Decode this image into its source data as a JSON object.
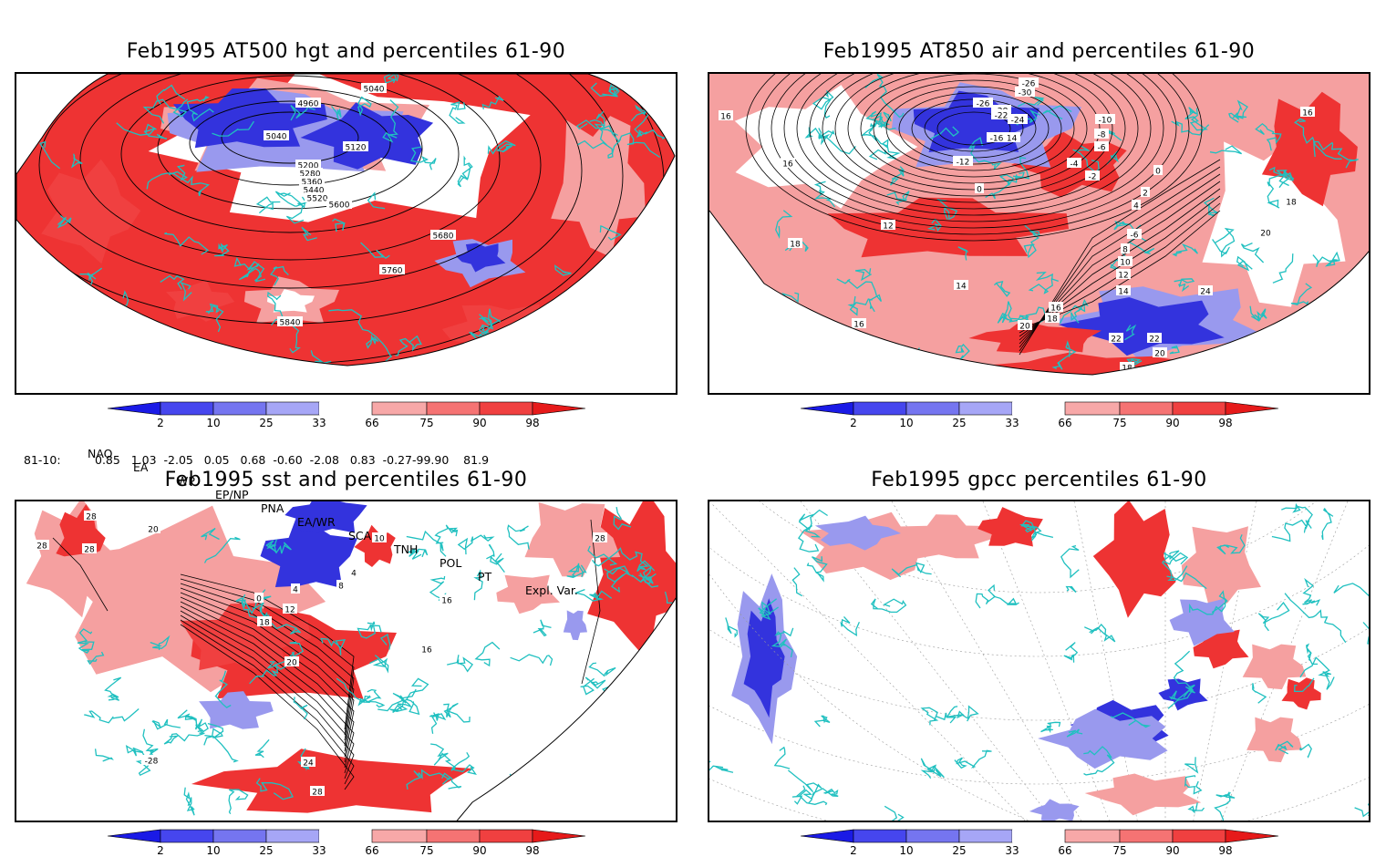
{
  "panels": [
    {
      "title": "Feb1995 AT500 hgt and percentiles 61-90",
      "contour_labels": [
        "4960",
        "5040",
        "5040",
        "5120",
        "5200",
        "5280",
        "5360",
        "5440",
        "5520",
        "5600",
        "5680",
        "5760",
        "5840"
      ]
    },
    {
      "title": "Feb1995 AT850 air and percentiles 61-90",
      "contour_labels": [
        "-26",
        "-30",
        "-26",
        "-28",
        "-22",
        "-24",
        "-10",
        "-14",
        "-16",
        "-8",
        "-6",
        "-12",
        "-4",
        "-2",
        "0",
        "0",
        "16",
        "16",
        "16",
        "12",
        "2",
        "4",
        "18",
        "-6",
        "8",
        "10",
        "12",
        "14",
        "20",
        "18",
        "14",
        "24",
        "16",
        "18",
        "16",
        "20",
        "22",
        "22",
        "20",
        "18"
      ]
    },
    {
      "title": "Feb1995 sst and percentiles 61-90",
      "contour_labels": [
        "28",
        "28",
        "28",
        "20",
        "0",
        "4",
        "4",
        "8",
        "10",
        "12",
        "16",
        "18",
        "20",
        "16",
        "28",
        "24",
        "28",
        "-28"
      ]
    },
    {
      "title": "Feb1995 gpcc percentiles 61-90",
      "contour_labels": []
    }
  ],
  "colorbar": {
    "ticks": [
      "2",
      "10",
      "25",
      "33",
      "66",
      "75",
      "90",
      "98"
    ],
    "colors": [
      "#1a1ae6",
      "#4646ee",
      "#7575f0",
      "#a6a6f6",
      "#ffffff",
      "#f7a8a8",
      "#f57373",
      "#f04040",
      "#e61a1a"
    ]
  },
  "teleconnections": {
    "headers": [
      "NAO",
      "EA",
      "WP",
      "EP/NP",
      "PNA",
      "EA/WR",
      "SCA",
      "TNH",
      "POL",
      "PT",
      "Expl. Var."
    ],
    "period": "81-10:",
    "values": "0.85   1.03  -2.05   0.05   0.68  -0.60  -2.08   0.83  -0.27-99.90    81.9"
  },
  "map_colors": {
    "coast": "#20c0c0",
    "red": "#ee3333",
    "pink": "#f5a0a0",
    "blue": "#3333dd",
    "lightblue": "#9999ee"
  }
}
